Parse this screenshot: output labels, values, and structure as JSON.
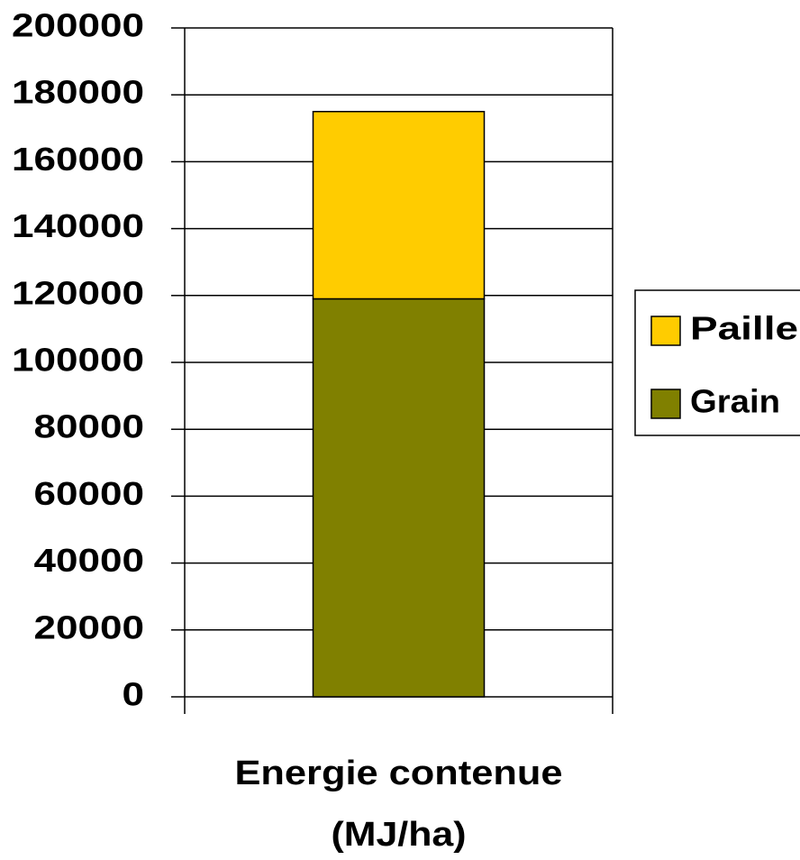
{
  "chart_data": {
    "type": "stacked_bar",
    "categories": [
      null
    ],
    "series": [
      {
        "name": "Grain",
        "color": "#808000",
        "values": [
          119000
        ]
      },
      {
        "name": "Paille",
        "color": "#ffcc00",
        "values": [
          56000
        ]
      }
    ],
    "xlabel": [
      "Energie contenue",
      "(MJ/ha)"
    ],
    "ylim": [
      0,
      200000
    ],
    "yticks": [
      0,
      20000,
      40000,
      60000,
      80000,
      100000,
      120000,
      140000,
      160000,
      180000,
      200000
    ],
    "grid": true,
    "legend": "right"
  }
}
